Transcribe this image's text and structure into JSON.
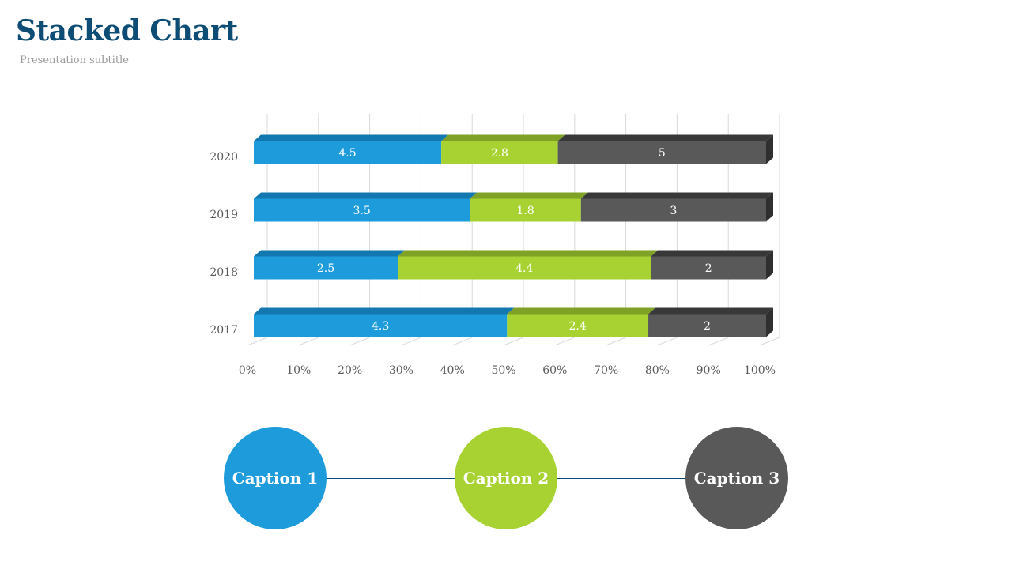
{
  "header": {
    "title": "Stacked Chart",
    "subtitle": "Presentation subtitle"
  },
  "colors": {
    "series1": "#1e9bdb",
    "series1_dark": "#1478b0",
    "series2": "#a7d232",
    "series2_dark": "#7fa126",
    "series3": "#595959",
    "series3_dark": "#383838",
    "grid": "#d9d9d9",
    "connector": "#0d4c74"
  },
  "chart_data": {
    "type": "bar",
    "orientation": "horizontal",
    "stacking": "percent",
    "categories": [
      "2017",
      "2018",
      "2019",
      "2020"
    ],
    "series": [
      {
        "values": [
          4.3,
          2.5,
          3.5,
          4.5
        ]
      },
      {
        "values": [
          2.4,
          4.4,
          1.8,
          2.8
        ]
      },
      {
        "values": [
          2,
          2,
          3,
          5
        ]
      }
    ],
    "x_ticks": [
      "0%",
      "10%",
      "20%",
      "30%",
      "40%",
      "50%",
      "60%",
      "70%",
      "80%",
      "90%",
      "100%"
    ],
    "xlim": [
      0,
      100
    ],
    "grid": true,
    "data_labels": true
  },
  "captions": [
    {
      "label": "Caption 1",
      "color": "#1e9bdb"
    },
    {
      "label": "Caption 2",
      "color": "#a7d232"
    },
    {
      "label": "Caption 3",
      "color": "#595959"
    }
  ]
}
